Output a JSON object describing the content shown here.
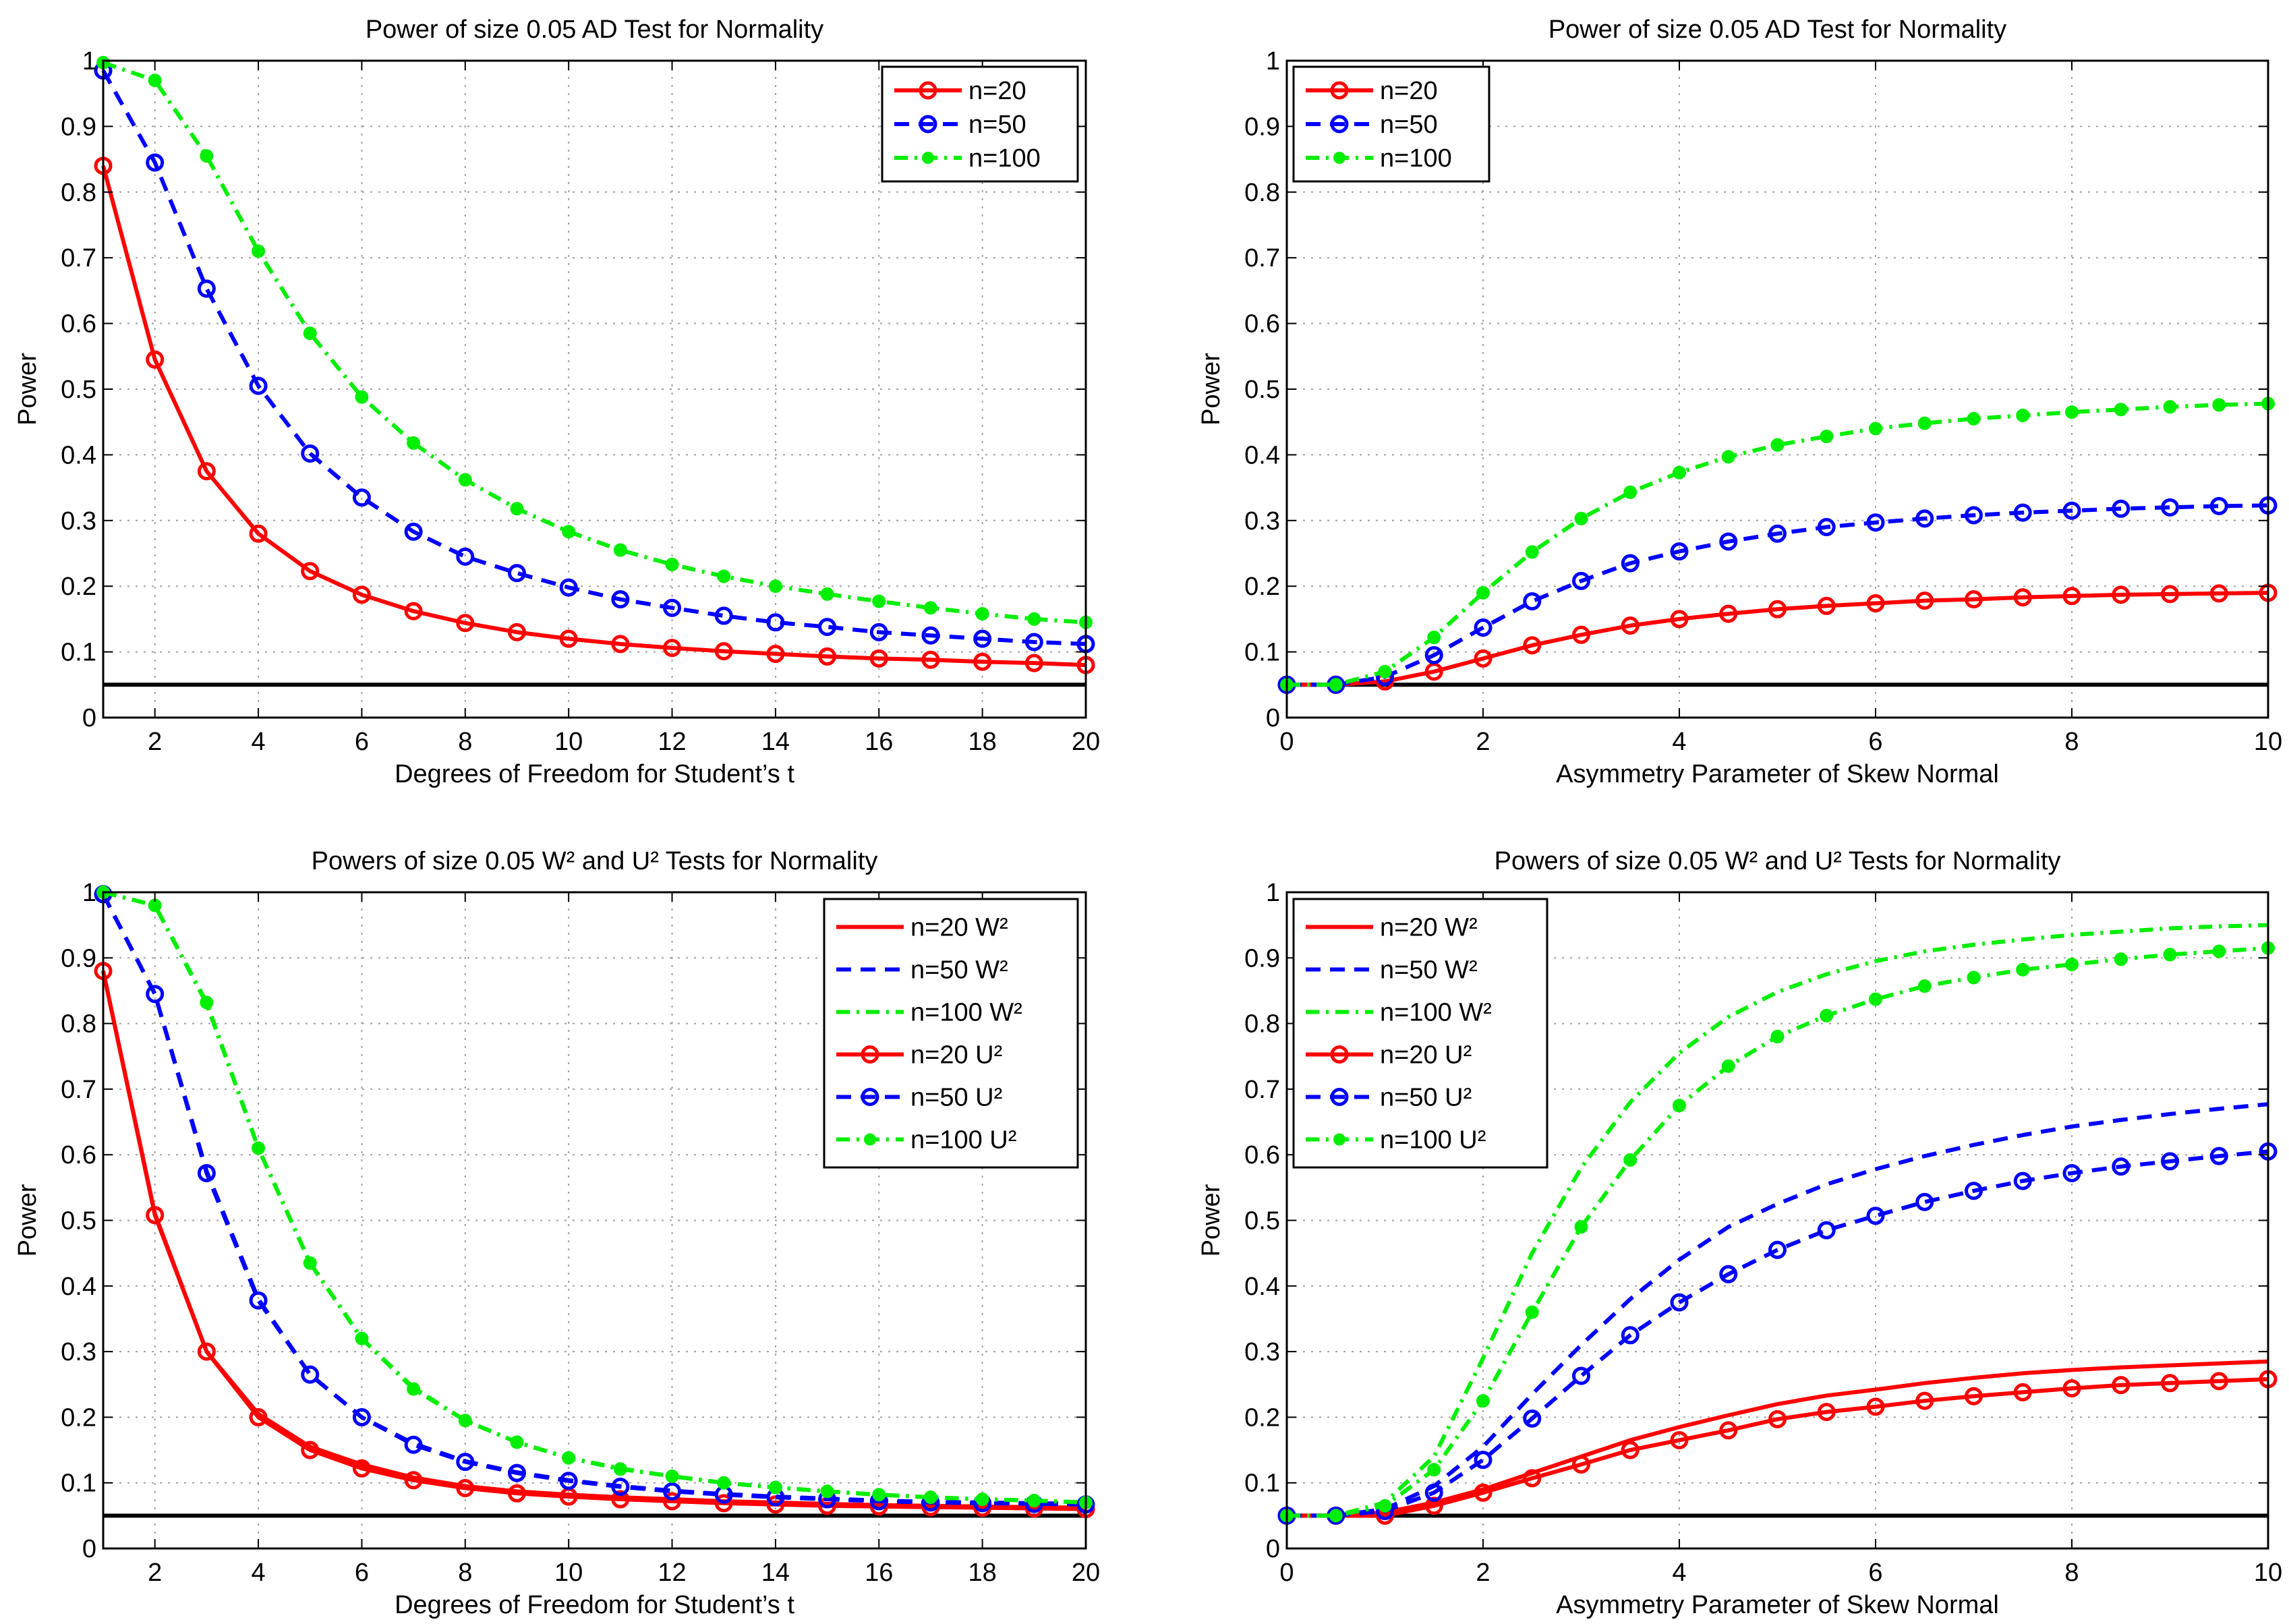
{
  "chart_data": [
    {
      "type": "line",
      "title": "Power of size 0.05 AD Test for Normality",
      "xlabel": "Degrees of Freedom for Student’s t",
      "ylabel": "Power",
      "xlim": [
        1,
        20
      ],
      "ylim": [
        0,
        1
      ],
      "xticks": [
        2,
        4,
        6,
        8,
        10,
        12,
        14,
        16,
        18,
        20
      ],
      "yticks": [
        0,
        0.1,
        0.2,
        0.3,
        0.4,
        0.5,
        0.6,
        0.7,
        0.8,
        0.9,
        1
      ],
      "grid": true,
      "legend_position": "top-right",
      "reference_line": 0.05,
      "series": [
        {
          "name": "n=20",
          "color": "#ff0000",
          "style": "solid",
          "marker": "circle",
          "x": [
            1,
            2,
            3,
            4,
            5,
            6,
            7,
            8,
            9,
            10,
            11,
            12,
            13,
            14,
            15,
            16,
            17,
            18,
            19,
            20
          ],
          "y": [
            0.84,
            0.545,
            0.375,
            0.28,
            0.223,
            0.187,
            0.162,
            0.144,
            0.13,
            0.12,
            0.112,
            0.106,
            0.101,
            0.097,
            0.093,
            0.09,
            0.088,
            0.085,
            0.083,
            0.08
          ]
        },
        {
          "name": "n=50",
          "color": "#0000ff",
          "style": "dashed",
          "marker": "circle",
          "x": [
            1,
            2,
            3,
            4,
            5,
            6,
            7,
            8,
            9,
            10,
            11,
            12,
            13,
            14,
            15,
            16,
            17,
            18,
            19,
            20
          ],
          "y": [
            0.985,
            0.845,
            0.653,
            0.505,
            0.402,
            0.335,
            0.283,
            0.245,
            0.22,
            0.198,
            0.18,
            0.167,
            0.155,
            0.145,
            0.138,
            0.13,
            0.125,
            0.12,
            0.115,
            0.112
          ]
        },
        {
          "name": "n=100",
          "color": "#00ee00",
          "style": "dashdot",
          "marker": "dot",
          "x": [
            1,
            2,
            3,
            4,
            5,
            6,
            7,
            8,
            9,
            10,
            11,
            12,
            13,
            14,
            15,
            16,
            17,
            18,
            19,
            20
          ],
          "y": [
            0.997,
            0.97,
            0.855,
            0.71,
            0.585,
            0.488,
            0.418,
            0.362,
            0.318,
            0.283,
            0.255,
            0.233,
            0.215,
            0.2,
            0.188,
            0.177,
            0.167,
            0.158,
            0.15,
            0.145
          ]
        }
      ]
    },
    {
      "type": "line",
      "title": "Power of size 0.05 AD Test for Normality",
      "xlabel": "Asymmetry Parameter of Skew Normal",
      "ylabel": "Power",
      "xlim": [
        0,
        10
      ],
      "ylim": [
        0,
        1
      ],
      "xticks": [
        0,
        2,
        4,
        6,
        8,
        10
      ],
      "yticks": [
        0,
        0.1,
        0.2,
        0.3,
        0.4,
        0.5,
        0.6,
        0.7,
        0.8,
        0.9,
        1
      ],
      "grid": true,
      "legend_position": "top-left",
      "reference_line": 0.05,
      "series": [
        {
          "name": "n=20",
          "color": "#ff0000",
          "style": "solid",
          "marker": "circle",
          "x": [
            0,
            0.5,
            1,
            1.5,
            2,
            2.5,
            3,
            3.5,
            4,
            4.5,
            5,
            5.5,
            6,
            6.5,
            7,
            7.5,
            8,
            8.5,
            9,
            9.5,
            10
          ],
          "y": [
            0.05,
            0.05,
            0.055,
            0.07,
            0.09,
            0.11,
            0.126,
            0.14,
            0.15,
            0.158,
            0.165,
            0.17,
            0.174,
            0.178,
            0.18,
            0.183,
            0.185,
            0.187,
            0.188,
            0.189,
            0.19
          ]
        },
        {
          "name": "n=50",
          "color": "#0000ff",
          "style": "dashed",
          "marker": "circle",
          "x": [
            0,
            0.5,
            1,
            1.5,
            2,
            2.5,
            3,
            3.5,
            4,
            4.5,
            5,
            5.5,
            6,
            6.5,
            7,
            7.5,
            8,
            8.5,
            9,
            9.5,
            10
          ],
          "y": [
            0.05,
            0.05,
            0.062,
            0.095,
            0.137,
            0.177,
            0.208,
            0.235,
            0.253,
            0.268,
            0.28,
            0.29,
            0.297,
            0.303,
            0.308,
            0.312,
            0.315,
            0.318,
            0.32,
            0.322,
            0.323
          ]
        },
        {
          "name": "n=100",
          "color": "#00ee00",
          "style": "dashdot",
          "marker": "dot",
          "x": [
            0,
            0.5,
            1,
            1.5,
            2,
            2.5,
            3,
            3.5,
            4,
            4.5,
            5,
            5.5,
            6,
            6.5,
            7,
            7.5,
            8,
            8.5,
            9,
            9.5,
            10
          ],
          "y": [
            0.05,
            0.05,
            0.07,
            0.122,
            0.19,
            0.252,
            0.303,
            0.343,
            0.373,
            0.397,
            0.415,
            0.428,
            0.44,
            0.448,
            0.455,
            0.46,
            0.465,
            0.469,
            0.473,
            0.476,
            0.478
          ]
        }
      ]
    },
    {
      "type": "line",
      "title": "Powers of size 0.05 W² and U² Tests for Normality",
      "xlabel": "Degrees of Freedom for Student’s t",
      "ylabel": "Power",
      "xlim": [
        1,
        20
      ],
      "ylim": [
        0,
        1
      ],
      "xticks": [
        2,
        4,
        6,
        8,
        10,
        12,
        14,
        16,
        18,
        20
      ],
      "yticks": [
        0,
        0.1,
        0.2,
        0.3,
        0.4,
        0.5,
        0.6,
        0.7,
        0.8,
        0.9,
        1
      ],
      "grid": true,
      "legend_position": "top-right",
      "reference_line": 0.05,
      "series": [
        {
          "name": "n=20 W²",
          "color": "#ff0000",
          "style": "solid",
          "marker": "none",
          "x": [
            1,
            2,
            3,
            4,
            5,
            6,
            7,
            8,
            9,
            10,
            11,
            12,
            13,
            14,
            15,
            16,
            17,
            18,
            19,
            20
          ],
          "y": [
            0.88,
            0.51,
            0.3,
            0.205,
            0.155,
            0.128,
            0.108,
            0.095,
            0.087,
            0.082,
            0.078,
            0.075,
            0.072,
            0.07,
            0.068,
            0.066,
            0.065,
            0.064,
            0.063,
            0.062
          ]
        },
        {
          "name": "n=50 W²",
          "color": "#0000ff",
          "style": "dashed",
          "marker": "none",
          "x": [
            1,
            2,
            3,
            4,
            5,
            6,
            7,
            8,
            9,
            10,
            11,
            12,
            13,
            14,
            15,
            16,
            17,
            18,
            19,
            20
          ],
          "y": [
            0.997,
            0.845,
            0.575,
            0.38,
            0.265,
            0.2,
            0.16,
            0.133,
            0.116,
            0.104,
            0.095,
            0.088,
            0.083,
            0.079,
            0.076,
            0.073,
            0.071,
            0.07,
            0.069,
            0.068
          ]
        },
        {
          "name": "n=100 W²",
          "color": "#00ee00",
          "style": "dashdot",
          "marker": "none",
          "x": [
            1,
            2,
            3,
            4,
            5,
            6,
            7,
            8,
            9,
            10,
            11,
            12,
            13,
            14,
            15,
            16,
            17,
            18,
            19,
            20
          ],
          "y": [
            1.0,
            0.98,
            0.83,
            0.61,
            0.435,
            0.32,
            0.245,
            0.195,
            0.162,
            0.138,
            0.122,
            0.11,
            0.1,
            0.093,
            0.087,
            0.082,
            0.078,
            0.075,
            0.073,
            0.07
          ]
        },
        {
          "name": "n=20 U²",
          "color": "#ff0000",
          "style": "solid",
          "marker": "circle",
          "x": [
            1,
            2,
            3,
            4,
            5,
            6,
            7,
            8,
            9,
            10,
            11,
            12,
            13,
            14,
            15,
            16,
            17,
            18,
            19,
            20
          ],
          "y": [
            0.88,
            0.508,
            0.3,
            0.2,
            0.15,
            0.122,
            0.104,
            0.092,
            0.084,
            0.079,
            0.075,
            0.072,
            0.069,
            0.067,
            0.065,
            0.064,
            0.063,
            0.062,
            0.061,
            0.06
          ]
        },
        {
          "name": "n=50 U²",
          "color": "#0000ff",
          "style": "dashed",
          "marker": "circle",
          "x": [
            1,
            2,
            3,
            4,
            5,
            6,
            7,
            8,
            9,
            10,
            11,
            12,
            13,
            14,
            15,
            16,
            17,
            18,
            19,
            20
          ],
          "y": [
            0.997,
            0.845,
            0.572,
            0.378,
            0.265,
            0.2,
            0.158,
            0.132,
            0.115,
            0.103,
            0.094,
            0.087,
            0.082,
            0.078,
            0.075,
            0.072,
            0.07,
            0.069,
            0.068,
            0.067
          ]
        },
        {
          "name": "n=100 U²",
          "color": "#00ee00",
          "style": "dashdot",
          "marker": "dot",
          "x": [
            1,
            2,
            3,
            4,
            5,
            6,
            7,
            8,
            9,
            10,
            11,
            12,
            13,
            14,
            15,
            16,
            17,
            18,
            19,
            20
          ],
          "y": [
            1.0,
            0.98,
            0.832,
            0.61,
            0.435,
            0.32,
            0.243,
            0.195,
            0.162,
            0.138,
            0.121,
            0.11,
            0.1,
            0.093,
            0.087,
            0.082,
            0.078,
            0.075,
            0.073,
            0.07
          ]
        }
      ]
    },
    {
      "type": "line",
      "title": "Powers of size 0.05 W² and U² Tests for Normality",
      "xlabel": "Asymmetry Parameter of Skew Normal",
      "ylabel": "Power",
      "xlim": [
        0,
        10
      ],
      "ylim": [
        0,
        1
      ],
      "xticks": [
        0,
        2,
        4,
        6,
        8,
        10
      ],
      "yticks": [
        0,
        0.1,
        0.2,
        0.3,
        0.4,
        0.5,
        0.6,
        0.7,
        0.8,
        0.9,
        1
      ],
      "grid": true,
      "legend_position": "top-left",
      "reference_line": 0.05,
      "series": [
        {
          "name": "n=20 W²",
          "color": "#ff0000",
          "style": "solid",
          "marker": "none",
          "x": [
            0,
            0.5,
            1,
            1.5,
            2,
            2.5,
            3,
            3.5,
            4,
            4.5,
            5,
            5.5,
            6,
            6.5,
            7,
            7.5,
            8,
            8.5,
            9,
            9.5,
            10
          ],
          "y": [
            0.05,
            0.05,
            0.055,
            0.07,
            0.09,
            0.115,
            0.14,
            0.165,
            0.185,
            0.203,
            0.22,
            0.233,
            0.242,
            0.252,
            0.26,
            0.267,
            0.272,
            0.276,
            0.279,
            0.282,
            0.285
          ]
        },
        {
          "name": "n=50 W²",
          "color": "#0000ff",
          "style": "dashed",
          "marker": "none",
          "x": [
            0,
            0.5,
            1,
            1.5,
            2,
            2.5,
            3,
            3.5,
            4,
            4.5,
            5,
            5.5,
            6,
            6.5,
            7,
            7.5,
            8,
            8.5,
            9,
            9.5,
            10
          ],
          "y": [
            0.05,
            0.05,
            0.06,
            0.095,
            0.155,
            0.235,
            0.31,
            0.38,
            0.44,
            0.49,
            0.525,
            0.555,
            0.578,
            0.598,
            0.615,
            0.63,
            0.643,
            0.653,
            0.662,
            0.67,
            0.677
          ]
        },
        {
          "name": "n=100 W²",
          "color": "#00ee00",
          "style": "dashdot",
          "marker": "none",
          "x": [
            0,
            0.5,
            1,
            1.5,
            2,
            2.5,
            3,
            3.5,
            4,
            4.5,
            5,
            5.5,
            6,
            6.5,
            7,
            7.5,
            8,
            8.5,
            9,
            9.5,
            10
          ],
          "y": [
            0.05,
            0.05,
            0.07,
            0.14,
            0.29,
            0.45,
            0.58,
            0.68,
            0.755,
            0.81,
            0.848,
            0.875,
            0.895,
            0.91,
            0.92,
            0.928,
            0.935,
            0.94,
            0.945,
            0.948,
            0.95
          ]
        },
        {
          "name": "n=20 U²",
          "color": "#ff0000",
          "style": "solid",
          "marker": "circle",
          "x": [
            0,
            0.5,
            1,
            1.5,
            2,
            2.5,
            3,
            3.5,
            4,
            4.5,
            5,
            5.5,
            6,
            6.5,
            7,
            7.5,
            8,
            8.5,
            9,
            9.5,
            10
          ],
          "y": [
            0.05,
            0.05,
            0.05,
            0.065,
            0.085,
            0.107,
            0.128,
            0.15,
            0.165,
            0.18,
            0.197,
            0.208,
            0.216,
            0.225,
            0.232,
            0.238,
            0.244,
            0.249,
            0.252,
            0.255,
            0.258
          ]
        },
        {
          "name": "n=50 U²",
          "color": "#0000ff",
          "style": "dashed",
          "marker": "circle",
          "x": [
            0,
            0.5,
            1,
            1.5,
            2,
            2.5,
            3,
            3.5,
            4,
            4.5,
            5,
            5.5,
            6,
            6.5,
            7,
            7.5,
            8,
            8.5,
            9,
            9.5,
            10
          ],
          "y": [
            0.05,
            0.05,
            0.057,
            0.085,
            0.135,
            0.198,
            0.263,
            0.325,
            0.375,
            0.418,
            0.455,
            0.485,
            0.507,
            0.528,
            0.545,
            0.56,
            0.572,
            0.582,
            0.59,
            0.598,
            0.605
          ]
        },
        {
          "name": "n=100 U²",
          "color": "#00ee00",
          "style": "dashdot",
          "marker": "dot",
          "x": [
            0,
            0.5,
            1,
            1.5,
            2,
            2.5,
            3,
            3.5,
            4,
            4.5,
            5,
            5.5,
            6,
            6.5,
            7,
            7.5,
            8,
            8.5,
            9,
            9.5,
            10
          ],
          "y": [
            0.05,
            0.05,
            0.065,
            0.12,
            0.225,
            0.36,
            0.49,
            0.592,
            0.675,
            0.735,
            0.78,
            0.812,
            0.837,
            0.857,
            0.87,
            0.882,
            0.89,
            0.898,
            0.905,
            0.91,
            0.915
          ]
        }
      ]
    }
  ]
}
